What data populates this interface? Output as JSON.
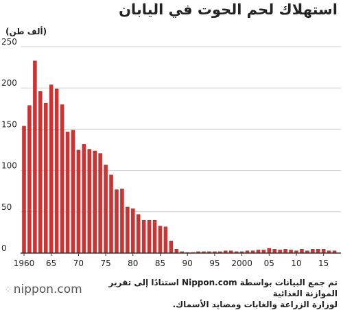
{
  "header": {
    "title": "استهلاك لحم الحوت في اليابان",
    "unit": "(ألف طن)"
  },
  "footer": {
    "source_line1": "تم جمع البيانات بواسطة Nippon.com استنادًا إلى تقرير الموازنة الغذائية",
    "source_line2": "لوزارة الزراعة والغابات ومصايد الأسماك.",
    "logo_text": "nippon.com",
    "logo_mark": "⁘"
  },
  "colors": {
    "bar": "#cc3333",
    "grid": "#cccccc",
    "axis": "#333333"
  },
  "chart_data": {
    "type": "bar",
    "title": "استهلاك لحم الحوت في اليابان",
    "ylabel": "(ألف طن)",
    "xlabel": "",
    "ylim": [
      0,
      250
    ],
    "yticks": [
      0,
      50,
      100,
      150,
      200,
      250
    ],
    "xtick_labels": [
      {
        "year": 1960,
        "label": "1960"
      },
      {
        "year": 1965,
        "label": "65"
      },
      {
        "year": 1970,
        "label": "70"
      },
      {
        "year": 1975,
        "label": "75"
      },
      {
        "year": 1980,
        "label": "80"
      },
      {
        "year": 1985,
        "label": "85"
      },
      {
        "year": 1990,
        "label": "90"
      },
      {
        "year": 1995,
        "label": "95"
      },
      {
        "year": 2000,
        "label": "2000"
      },
      {
        "year": 2005,
        "label": "05"
      },
      {
        "year": 2010,
        "label": "10"
      },
      {
        "year": 2015,
        "label": "15"
      }
    ],
    "grid": true,
    "categories": [
      1960,
      1961,
      1962,
      1963,
      1964,
      1965,
      1966,
      1967,
      1968,
      1969,
      1970,
      1971,
      1972,
      1973,
      1974,
      1975,
      1976,
      1977,
      1978,
      1979,
      1980,
      1981,
      1982,
      1983,
      1984,
      1985,
      1986,
      1987,
      1988,
      1989,
      1990,
      1991,
      1992,
      1993,
      1994,
      1995,
      1996,
      1997,
      1998,
      1999,
      2000,
      2001,
      2002,
      2003,
      2004,
      2005,
      2006,
      2007,
      2008,
      2009,
      2010,
      2011,
      2012,
      2013,
      2014,
      2015,
      2016,
      2017
    ],
    "values": [
      154,
      179,
      233,
      196,
      182,
      204,
      199,
      180,
      147,
      149,
      125,
      132,
      126,
      124,
      121,
      107,
      95,
      77,
      78,
      56,
      54,
      47,
      40,
      40,
      40,
      33,
      32,
      15,
      5,
      2,
      1,
      1,
      2,
      2,
      2,
      2,
      2,
      3,
      3,
      2,
      2,
      3,
      3,
      4,
      4,
      6,
      5,
      4,
      5,
      4,
      3,
      5,
      3,
      5,
      5,
      5,
      3,
      3
    ]
  }
}
